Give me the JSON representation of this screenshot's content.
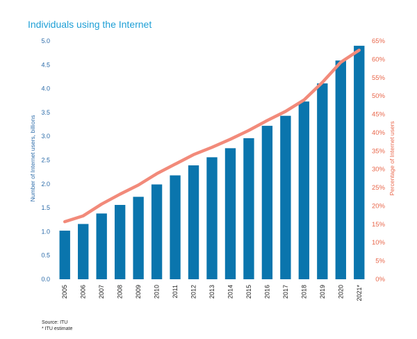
{
  "title": "Individuals using the Internet",
  "source": "Source: ITU",
  "footnote": "* ITU estimate",
  "colors": {
    "title": "#1e9fd6",
    "bars": "#0a75ad",
    "line": "#f28a7a",
    "left_axis": "#2a6aa8",
    "right_axis": "#e8664a"
  },
  "chart_data": {
    "type": "bar",
    "categories": [
      "2005",
      "2006",
      "2007",
      "2008",
      "2009",
      "2010",
      "2011",
      "2012",
      "2013",
      "2014",
      "2015",
      "2016",
      "2017",
      "2018",
      "2019",
      "2020",
      "2021*"
    ],
    "series": [
      {
        "type": "bar",
        "axis": "left",
        "values": [
          1.02,
          1.16,
          1.38,
          1.56,
          1.73,
          1.99,
          2.18,
          2.39,
          2.56,
          2.75,
          2.96,
          3.22,
          3.43,
          3.73,
          4.11,
          4.59,
          4.9
        ]
      },
      {
        "type": "line",
        "axis": "right",
        "values": [
          15.7,
          17.3,
          20.5,
          23.2,
          25.7,
          28.8,
          31.4,
          34.0,
          36.0,
          38.2,
          40.6,
          43.3,
          45.8,
          48.9,
          53.7,
          59.2,
          62.5
        ]
      }
    ],
    "ylabel": "Number of Internet users, billions",
    "y2label": "Percentage of Internet users",
    "ylim": [
      0,
      5.0
    ],
    "y2lim": [
      0,
      65
    ],
    "yticks": [
      "0.0",
      "0.5",
      "1.0",
      "1.5",
      "2.0",
      "2.5",
      "3.0",
      "3.5",
      "4.0",
      "4.5",
      "5.0"
    ],
    "y2ticks": [
      "0%",
      "5%",
      "10%",
      "15%",
      "20%",
      "25%",
      "30%",
      "35%",
      "40%",
      "45%",
      "50%",
      "55%",
      "60%",
      "65%"
    ],
    "grid": false,
    "legend": "none"
  }
}
